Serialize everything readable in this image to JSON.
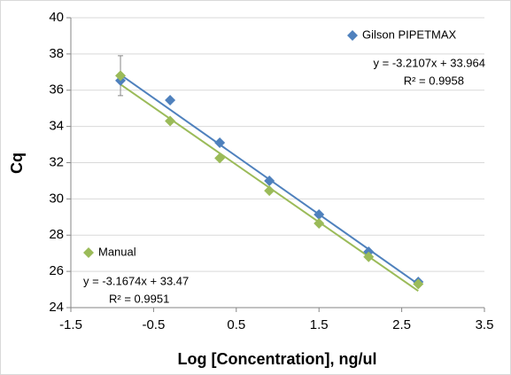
{
  "chart_data": {
    "type": "scatter",
    "x_label": "Log [Concentration], ng/ul",
    "y_label": "Cq",
    "xlim": [
      -1.5,
      3.5
    ],
    "xticks": [
      -1.5,
      -0.5,
      0.5,
      1.5,
      2.5,
      3.5
    ],
    "ylim": [
      24,
      40
    ],
    "yticks": [
      24,
      26,
      28,
      30,
      32,
      34,
      36,
      38,
      40
    ],
    "grid": true,
    "series": [
      {
        "name": "Gilson PIPETMAX",
        "color": "#4f81bd",
        "x": [
          -0.9,
          -0.3,
          0.3,
          0.9,
          1.5,
          2.1,
          2.7
        ],
        "values": [
          36.53,
          35.45,
          33.1,
          31.0,
          29.14,
          27.08,
          25.42
        ],
        "trendline": {
          "slope": -3.2107,
          "intercept": 33.964,
          "label": "y = -3.2107x + 33.964",
          "r2_label": "R² = 0.9958"
        }
      },
      {
        "name": "Manual",
        "color": "#9bbb59",
        "x": [
          -0.9,
          -0.3,
          0.3,
          0.9,
          1.5,
          2.1,
          2.7
        ],
        "values": [
          36.8,
          34.3,
          32.25,
          30.45,
          28.65,
          26.8,
          25.3
        ],
        "errors": [
          1.1,
          null,
          null,
          null,
          null,
          null,
          null
        ],
        "trendline": {
          "slope": -3.1674,
          "intercept": 33.47,
          "label": "y = -3.1674x + 33.47",
          "r2_label": "R² = 0.9951"
        }
      }
    ]
  }
}
